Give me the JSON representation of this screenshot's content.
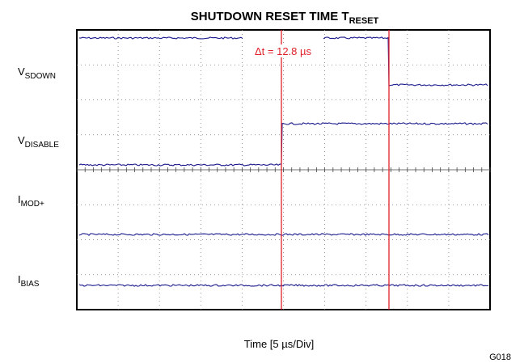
{
  "chart_data": {
    "type": "scope",
    "title": {
      "text": "SHUTDOWN RESET TIME T",
      "sub": "RESET"
    },
    "x_label": "Time [5 µs/Div]",
    "annotation": "Δt = 12.8 µs",
    "figure_id": "G018",
    "channels": [
      {
        "text": "V",
        "sub": "SDOWN"
      },
      {
        "text": "V",
        "sub": "DISABLE"
      },
      {
        "text": "I",
        "sub": "MOD+"
      },
      {
        "text": "I",
        "sub": "BIAS"
      }
    ]
  }
}
